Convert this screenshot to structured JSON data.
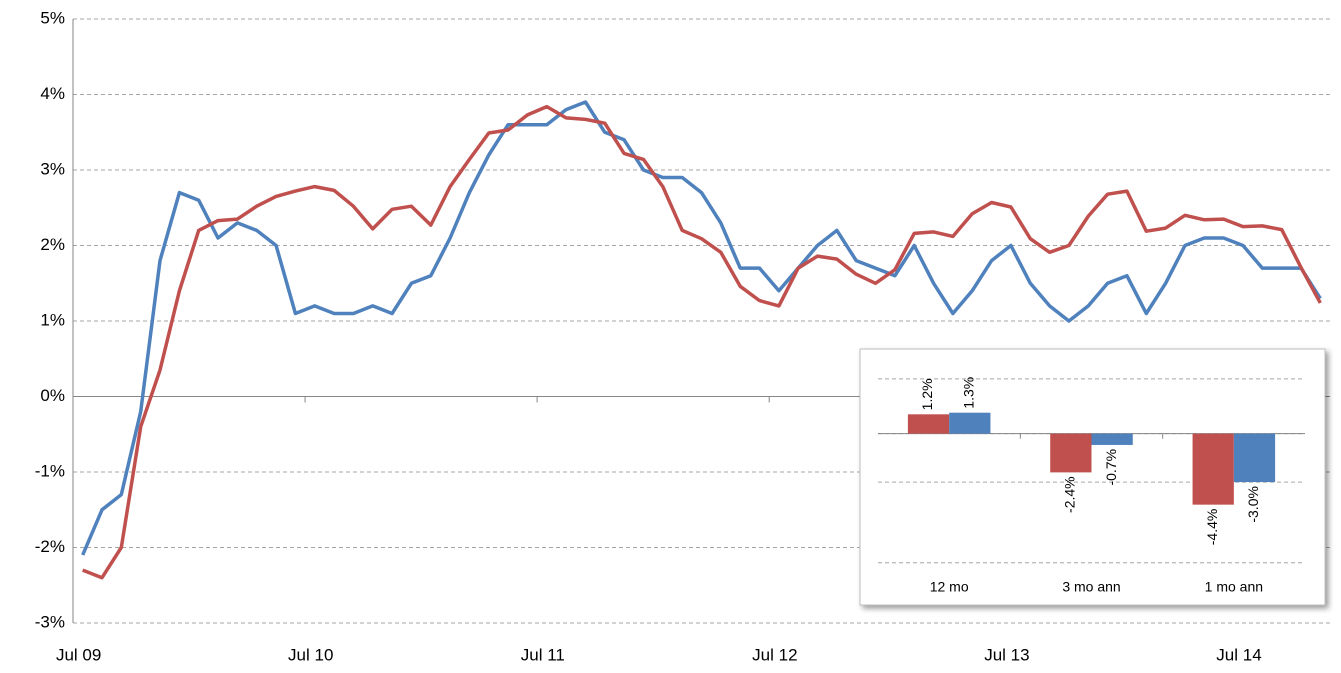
{
  "chart_data": [
    {
      "type": "line",
      "categories": [
        "Jul 09",
        null,
        null,
        null,
        null,
        null,
        null,
        null,
        null,
        null,
        null,
        null,
        "Jul 10",
        null,
        null,
        null,
        null,
        null,
        null,
        null,
        null,
        null,
        null,
        null,
        "Jul 11",
        null,
        null,
        null,
        null,
        null,
        null,
        null,
        null,
        null,
        null,
        null,
        "Jul 12",
        null,
        null,
        null,
        null,
        null,
        null,
        null,
        null,
        null,
        null,
        null,
        "Jul 13",
        null,
        null,
        null,
        null,
        null,
        null,
        null,
        null,
        null,
        null,
        null,
        "Jul 14",
        null,
        null,
        null,
        null
      ],
      "series": [
        {
          "color": "#4f81bd",
          "values": [
            -2.1,
            -1.5,
            -1.3,
            -0.2,
            1.8,
            2.7,
            2.6,
            2.1,
            2.3,
            2.2,
            2.0,
            1.1,
            1.2,
            1.1,
            1.1,
            1.2,
            1.1,
            1.5,
            1.6,
            2.1,
            2.7,
            3.2,
            3.6,
            3.6,
            3.6,
            3.8,
            3.9,
            3.5,
            3.4,
            3.0,
            2.9,
            2.9,
            2.7,
            2.3,
            1.7,
            1.7,
            1.4,
            1.7,
            2.0,
            2.2,
            1.8,
            1.7,
            1.6,
            2.0,
            1.5,
            1.1,
            1.4,
            1.8,
            2.0,
            1.5,
            1.2,
            1.0,
            1.2,
            1.5,
            1.6,
            1.1,
            1.5,
            2.0,
            2.1,
            2.1,
            2.0,
            1.7,
            1.7,
            1.7,
            1.3
          ]
        },
        {
          "color": "#c0504d",
          "values": [
            -2.3,
            -2.4,
            -2.0,
            -0.4,
            0.35,
            1.4,
            2.2,
            2.33,
            2.35,
            2.52,
            2.65,
            2.72,
            2.78,
            2.73,
            2.52,
            2.22,
            2.48,
            2.52,
            2.27,
            2.78,
            3.14,
            3.49,
            3.53,
            3.73,
            3.84,
            3.69,
            3.67,
            3.62,
            3.22,
            3.14,
            2.78,
            2.2,
            2.09,
            1.91,
            1.46,
            1.27,
            1.2,
            1.7,
            1.86,
            1.82,
            1.62,
            1.5,
            1.68,
            2.16,
            2.18,
            2.12,
            2.42,
            2.57,
            2.51,
            2.09,
            1.91,
            2.0,
            2.39,
            2.68,
            2.72,
            2.19,
            2.23,
            2.4,
            2.34,
            2.35,
            2.25,
            2.26,
            2.21,
            1.71,
            1.24
          ]
        }
      ],
      "ylim": [
        -3,
        5
      ],
      "yticks": [
        {
          "value": -3,
          "label": "-3%"
        },
        {
          "value": -2,
          "label": "-2%"
        },
        {
          "value": -1,
          "label": "-1%"
        },
        {
          "value": 0,
          "label": "0%"
        },
        {
          "value": 1,
          "label": "1%"
        },
        {
          "value": 2,
          "label": "2%"
        },
        {
          "value": 3,
          "label": "3%"
        },
        {
          "value": 4,
          "label": "4%"
        },
        {
          "value": 5,
          "label": "5%"
        }
      ],
      "grid": true
    },
    {
      "type": "bar",
      "categories": [
        "12 mo",
        "3 mo ann",
        "1 mo ann"
      ],
      "series": [
        {
          "color": "#c0504d",
          "values": [
            1.2,
            -2.4,
            -4.4
          ],
          "value_labels": [
            "1.2%",
            "-2.4%",
            "-4.4%"
          ]
        },
        {
          "color": "#4f81bd",
          "values": [
            1.3,
            -0.7,
            -3.0
          ],
          "value_labels": [
            "1.3%",
            "-0.7%",
            "-3.0%"
          ]
        }
      ],
      "ylim": [
        -10,
        5
      ],
      "yticks": [
        -8,
        -3,
        0,
        3.4
      ],
      "grid": true
    }
  ]
}
